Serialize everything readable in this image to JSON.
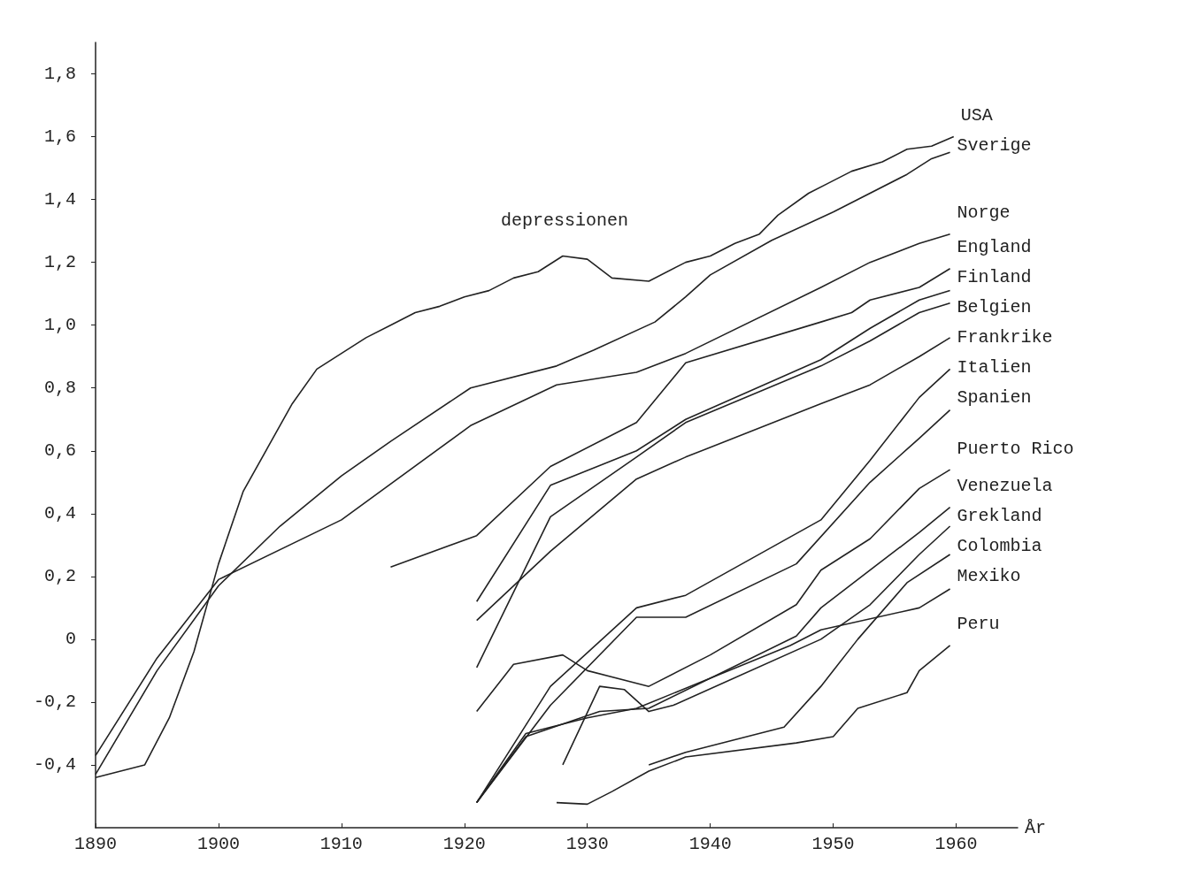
{
  "chart_data": {
    "type": "line",
    "xlabel": "År",
    "annotations": [
      "depressionen"
    ],
    "xlim": [
      1890,
      1965
    ],
    "xticks": [
      1890,
      1900,
      1910,
      1920,
      1930,
      1940,
      1950,
      1960
    ],
    "ylim": [
      -0.6,
      1.9
    ],
    "yticks": [
      {
        "value": -0.4,
        "label": "-0,4"
      },
      {
        "value": -0.2,
        "label": "-0,2"
      },
      0,
      {
        "value": 0.2,
        "label": "0,2"
      },
      {
        "value": 0.4,
        "label": "0,4"
      },
      {
        "value": 0.6,
        "label": "0,6"
      },
      {
        "value": 0.8,
        "label": "0,8"
      },
      {
        "value": 1.0,
        "label": "1,0"
      },
      {
        "value": 1.2,
        "label": "1,2"
      },
      {
        "value": 1.4,
        "label": "1,4"
      },
      {
        "value": 1.6,
        "label": "1,6"
      },
      {
        "value": 1.8,
        "label": "1,8"
      }
    ],
    "grid": false,
    "legend": false,
    "marker": "none",
    "line_style": "solid",
    "series": [
      {
        "name": "USA",
        "color": "#222222",
        "x": [
          1890,
          1894,
          1896,
          1898,
          1900,
          1902,
          1904,
          1906,
          1908,
          1910,
          1912,
          1914,
          1916,
          1918,
          1920,
          1922,
          1924,
          1926,
          1928,
          1930,
          1932,
          1935,
          1938,
          1940,
          1942,
          1944,
          1945.5,
          1948,
          1949.5,
          1951.5,
          1954,
          1956,
          1958,
          1959.8
        ],
        "values": [
          -0.44,
          -0.4,
          -0.25,
          -0.04,
          0.24,
          0.47,
          0.61,
          0.75,
          0.86,
          0.91,
          0.96,
          1.0,
          1.04,
          1.06,
          1.09,
          1.11,
          1.15,
          1.17,
          1.22,
          1.21,
          1.15,
          1.14,
          1.2,
          1.22,
          1.26,
          1.29,
          1.35,
          1.42,
          1.45,
          1.49,
          1.52,
          1.56,
          1.57,
          1.6
        ]
      },
      {
        "name": "Sverige",
        "color": "#222222",
        "x": [
          1890,
          1895,
          1900,
          1905,
          1910,
          1914,
          1920.5,
          1927.5,
          1930.5,
          1935.5,
          1938,
          1940,
          1945,
          1950,
          1956,
          1958,
          1959.5
        ],
        "values": [
          -0.43,
          -0.1,
          0.17,
          0.36,
          0.52,
          0.63,
          0.8,
          0.87,
          0.92,
          1.01,
          1.09,
          1.16,
          1.27,
          1.36,
          1.48,
          1.53,
          1.55
        ]
      },
      {
        "name": "Norge",
        "color": "#222222",
        "x": [
          1890,
          1895,
          1900,
          1910,
          1920.5,
          1927.5,
          1934,
          1938,
          1949,
          1953,
          1957,
          1959.5
        ],
        "values": [
          -0.37,
          -0.06,
          0.19,
          0.38,
          0.68,
          0.81,
          0.85,
          0.91,
          1.12,
          1.2,
          1.26,
          1.29
        ]
      },
      {
        "name": "England",
        "color": "#222222",
        "x": [
          1914,
          1921,
          1927,
          1934,
          1938,
          1949,
          1951.5,
          1953,
          1957,
          1959.5
        ],
        "values": [
          0.23,
          0.33,
          0.55,
          0.69,
          0.88,
          1.01,
          1.04,
          1.08,
          1.12,
          1.18
        ]
      },
      {
        "name": "Finland",
        "color": "#222222",
        "x": [
          1921,
          1927,
          1934,
          1938,
          1949,
          1953,
          1957,
          1959.5
        ],
        "values": [
          0.12,
          0.49,
          0.6,
          0.7,
          0.89,
          0.99,
          1.08,
          1.11
        ]
      },
      {
        "name": "Belgien",
        "color": "#222222",
        "x": [
          1921,
          1927,
          1934,
          1938,
          1949,
          1953,
          1957,
          1959.5
        ],
        "values": [
          -0.09,
          0.39,
          0.58,
          0.69,
          0.87,
          0.95,
          1.04,
          1.07
        ]
      },
      {
        "name": "Frankrike",
        "color": "#222222",
        "x": [
          1921,
          1927,
          1934,
          1938,
          1949,
          1953,
          1957,
          1959.5
        ],
        "values": [
          0.06,
          0.28,
          0.51,
          0.58,
          0.75,
          0.81,
          0.9,
          0.96
        ]
      },
      {
        "name": "Italien",
        "color": "#222222",
        "x": [
          1921,
          1927,
          1934,
          1938,
          1949,
          1953,
          1957,
          1959.5
        ],
        "values": [
          -0.52,
          -0.15,
          0.1,
          0.14,
          0.38,
          0.57,
          0.77,
          0.86
        ]
      },
      {
        "name": "Spanien",
        "color": "#222222",
        "x": [
          1921,
          1927,
          1934,
          1938,
          1947,
          1953,
          1957,
          1959.5
        ],
        "values": [
          -0.52,
          -0.21,
          0.07,
          0.07,
          0.24,
          0.5,
          0.64,
          0.73
        ]
      },
      {
        "name": "Puerto Rico",
        "color": "#222222",
        "x": [
          1921,
          1924,
          1928,
          1930,
          1935,
          1940,
          1947,
          1949,
          1953,
          1957,
          1959.5
        ],
        "values": [
          -0.23,
          -0.08,
          -0.05,
          -0.1,
          -0.15,
          -0.05,
          0.11,
          0.22,
          0.32,
          0.48,
          0.54
        ]
      },
      {
        "name": "Venezuela",
        "color": "#222222",
        "x": [
          1921,
          1925,
          1931,
          1935,
          1947,
          1949,
          1953,
          1957,
          1959.5
        ],
        "values": [
          -0.52,
          -0.31,
          -0.23,
          -0.22,
          0.01,
          0.1,
          0.22,
          0.34,
          0.42
        ]
      },
      {
        "name": "Grekland",
        "color": "#222222",
        "x": [
          1928,
          1931,
          1933,
          1935,
          1937,
          1949,
          1953,
          1957,
          1959.5
        ],
        "values": [
          -0.4,
          -0.15,
          -0.16,
          -0.23,
          -0.21,
          0.0,
          0.11,
          0.27,
          0.36
        ]
      },
      {
        "name": "Colombia",
        "color": "#222222",
        "x": [
          1935,
          1938,
          1946,
          1949,
          1952,
          1956,
          1959.5
        ],
        "values": [
          -0.4,
          -0.36,
          -0.28,
          -0.15,
          0.0,
          0.18,
          0.27
        ]
      },
      {
        "name": "Mexiko",
        "color": "#222222",
        "x": [
          1921,
          1925,
          1930,
          1934,
          1946.5,
          1949,
          1957,
          1959.5
        ],
        "values": [
          -0.52,
          -0.3,
          -0.25,
          -0.22,
          -0.02,
          0.03,
          0.1,
          0.16
        ]
      },
      {
        "name": "Peru",
        "color": "#222222",
        "x": [
          1927.5,
          1930,
          1932,
          1935,
          1938,
          1947,
          1950,
          1952,
          1956,
          1957,
          1959.5
        ],
        "values": [
          -0.52,
          -0.525,
          -0.485,
          -0.42,
          -0.375,
          -0.33,
          -0.31,
          -0.22,
          -0.17,
          -0.1,
          -0.02
        ]
      }
    ]
  }
}
